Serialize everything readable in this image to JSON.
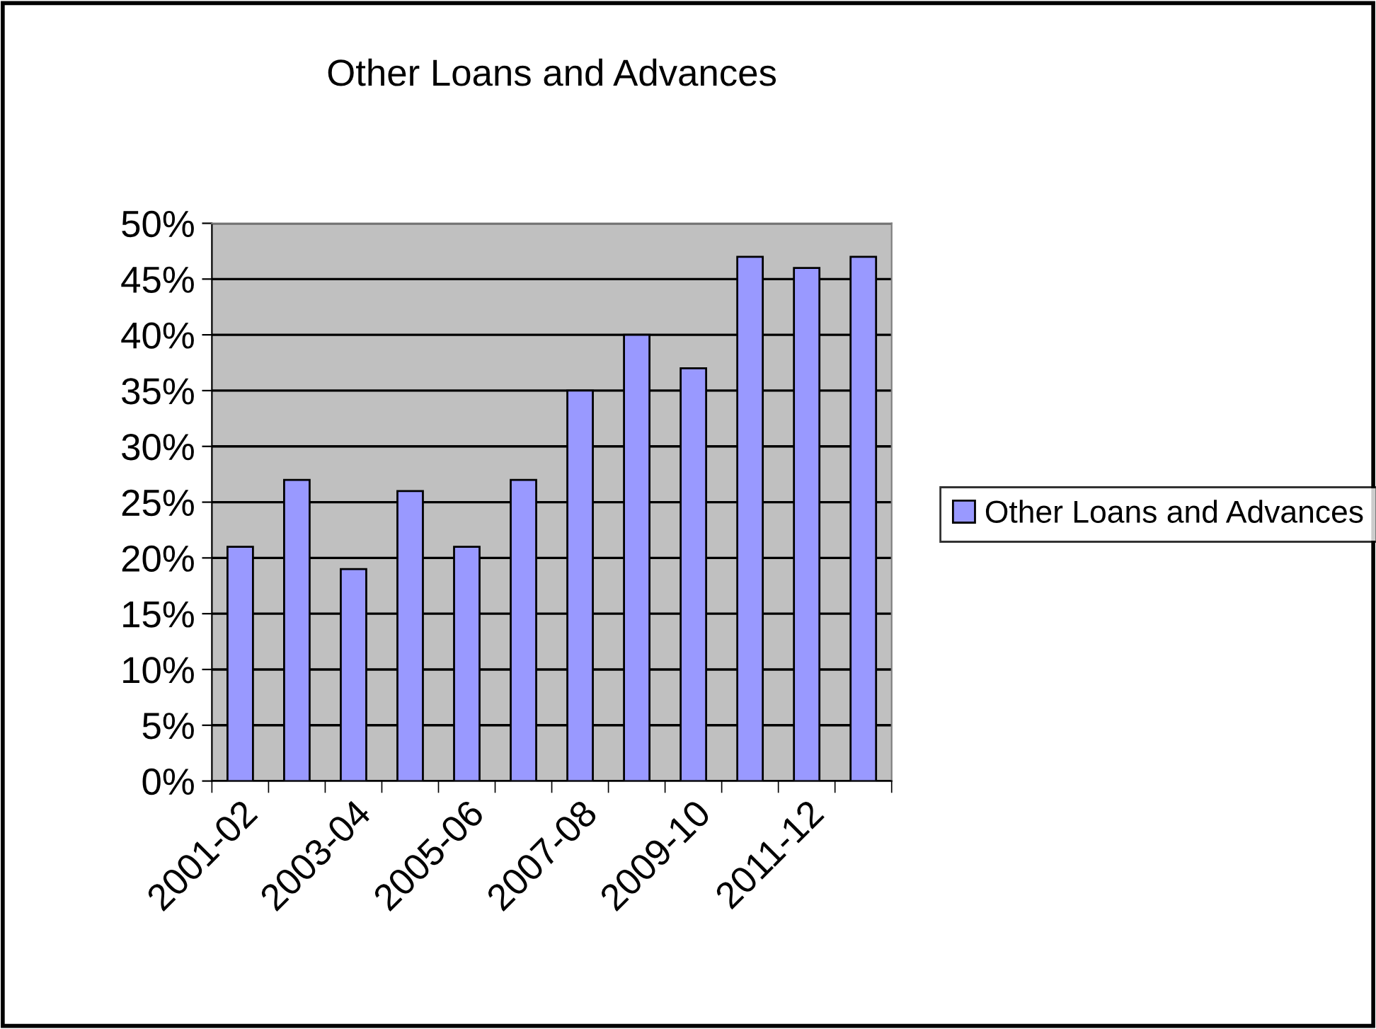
{
  "chart_data": {
    "type": "bar",
    "title": "Other Loans and Advances",
    "categories": [
      "2001-02",
      null,
      "2003-04",
      null,
      "2005-06",
      null,
      "2007-08",
      null,
      "2009-10",
      null,
      "2011-12",
      null
    ],
    "series": [
      {
        "name": "Other Loans and Advances",
        "color": "#9999ff",
        "values": [
          21,
          27,
          19,
          26,
          21,
          27,
          35,
          40,
          37,
          47,
          46,
          47
        ]
      }
    ],
    "ylim": [
      0,
      50
    ],
    "yticks": [
      {
        "value": 0,
        "label": "0%"
      },
      {
        "value": 5,
        "label": "5%"
      },
      {
        "value": 10,
        "label": "10%"
      },
      {
        "value": 15,
        "label": "15%"
      },
      {
        "value": 20,
        "label": "20%"
      },
      {
        "value": 25,
        "label": "25%"
      },
      {
        "value": 30,
        "label": "30%"
      },
      {
        "value": 35,
        "label": "35%"
      },
      {
        "value": 40,
        "label": "40%"
      },
      {
        "value": 45,
        "label": "45%"
      },
      {
        "value": 50,
        "label": "50%"
      }
    ],
    "grid": "y",
    "legend": "right"
  }
}
